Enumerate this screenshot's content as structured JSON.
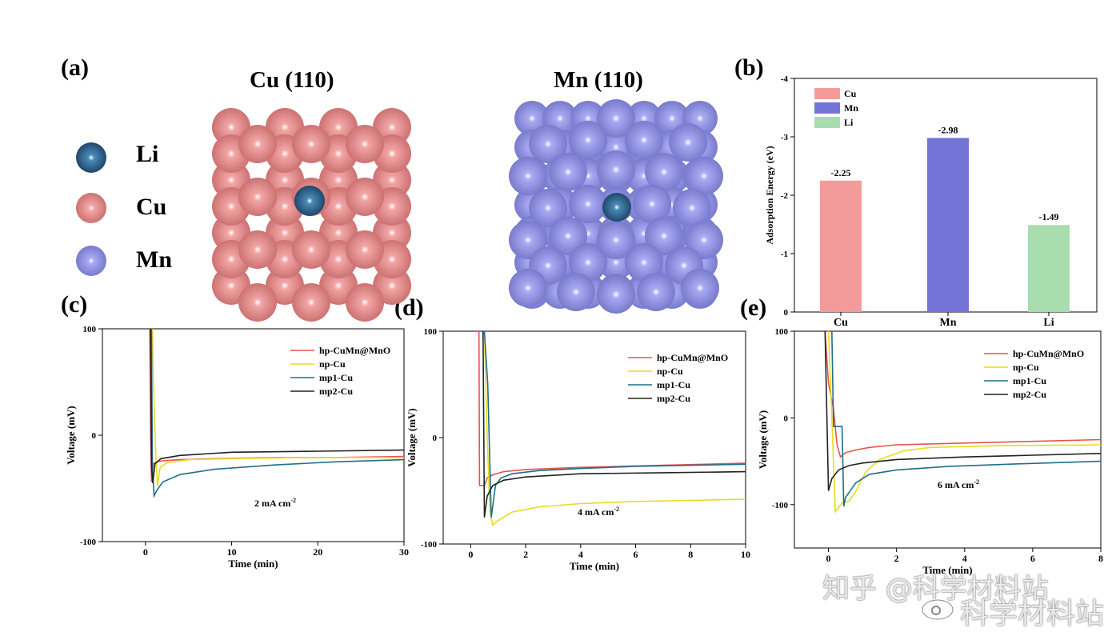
{
  "panel_labels": {
    "a": "(a)",
    "b": "(b)",
    "c": "(c)",
    "d": "(d)",
    "e": "(e)"
  },
  "structures": {
    "cu_title": "Cu (110)",
    "mn_title": "Mn (110)",
    "legend": [
      "Li",
      "Cu",
      "Mn"
    ],
    "colors": {
      "Li": "#1e4d74",
      "Cu": "#e89090",
      "Mn": "#8c8fe6"
    }
  },
  "chart_data": [
    {
      "type": "bar",
      "panel": "(b)",
      "categories": [
        "Cu",
        "Mn",
        "Li"
      ],
      "values": [
        -2.25,
        -2.98,
        -1.49
      ],
      "value_labels": [
        "-2.25",
        "-2.98",
        "-1.49"
      ],
      "colors": [
        "#f39b9b",
        "#7474d8",
        "#a9ddb0"
      ],
      "legend": [
        "Cu",
        "Mn",
        "Li"
      ],
      "ylabel": "Adsorption Energy (eV)",
      "ylim": [
        0,
        -4
      ],
      "yticks": [
        "0",
        "-1",
        "-2",
        "-3",
        "-4"
      ],
      "legend_position": "top-left"
    },
    {
      "type": "line",
      "panel": "(c)",
      "xlabel": "Time (min)",
      "ylabel": "Voltage (mV)",
      "xlim": [
        -5,
        30
      ],
      "ylim": [
        -100,
        100
      ],
      "xticks": [
        "0",
        "10",
        "20",
        "30"
      ],
      "yticks": [
        "-100",
        "0",
        "100"
      ],
      "annotation": {
        "text": "2 mA cm",
        "sup": "-2"
      },
      "legend_position": "top-right",
      "series": [
        {
          "name": "hp-CuMn@MnO",
          "color": "#e8534f",
          "x": [
            0.5,
            0.6,
            0.7,
            0.9,
            1.2,
            2,
            4,
            8,
            15,
            22,
            30
          ],
          "y": [
            100,
            0,
            -44,
            -27,
            -25,
            -24,
            -23,
            -22,
            -21,
            -21,
            -20
          ]
        },
        {
          "name": "np-Cu",
          "color": "#e8dc1e",
          "x": [
            0.8,
            1.0,
            1.2,
            1.4,
            1.7,
            2.5,
            5,
            10,
            18,
            30
          ],
          "y": [
            100,
            30,
            -20,
            -48,
            -30,
            -26,
            -23,
            -22,
            -21,
            -21
          ]
        },
        {
          "name": "mp1-Cu",
          "color": "#1f6e8c",
          "x": [
            0.7,
            0.8,
            1.0,
            1.3,
            2,
            4,
            8,
            15,
            22,
            30
          ],
          "y": [
            100,
            -30,
            -57,
            -52,
            -44,
            -37,
            -32,
            -28,
            -25,
            -23
          ]
        },
        {
          "name": "mp2-Cu",
          "color": "#222222",
          "x": [
            0.6,
            0.7,
            0.85,
            1.1,
            1.8,
            4,
            10,
            20,
            30
          ],
          "y": [
            100,
            -30,
            -45,
            -27,
            -22,
            -19,
            -16,
            -15,
            -14
          ]
        }
      ]
    },
    {
      "type": "line",
      "panel": "(d)",
      "xlabel": "Time (min)",
      "ylabel": "Voltage (mV)",
      "xlim": [
        -1,
        10
      ],
      "ylim": [
        -100,
        100
      ],
      "xticks": [
        "0",
        "2",
        "4",
        "6",
        "8",
        "10"
      ],
      "yticks": [
        "-100",
        "0",
        "100"
      ],
      "annotation": {
        "text": "4 mA cm",
        "sup": "-2"
      },
      "legend_position": "top-right",
      "series": [
        {
          "name": "hp-CuMn@MnO",
          "color": "#e8534f",
          "x": [
            0.3,
            0.32,
            0.5,
            0.6,
            0.8,
            1.2,
            2,
            4,
            7,
            10
          ],
          "y": [
            100,
            -45,
            -45,
            -38,
            -35,
            -32,
            -30,
            -28,
            -26,
            -24
          ]
        },
        {
          "name": "np-Cu",
          "color": "#e8dc1e",
          "x": [
            0.5,
            0.6,
            0.7,
            0.8,
            1.0,
            1.5,
            2.5,
            4,
            6,
            8,
            10
          ],
          "y": [
            100,
            0,
            -70,
            -82,
            -78,
            -70,
            -65,
            -62,
            -60,
            -59,
            -58
          ]
        },
        {
          "name": "mp1-Cu",
          "color": "#1f6e8c",
          "x": [
            0.5,
            0.62,
            0.75,
            0.9,
            1.1,
            1.5,
            2.5,
            4,
            6,
            8,
            10
          ],
          "y": [
            100,
            50,
            -75,
            -45,
            -38,
            -34,
            -31,
            -29,
            -27,
            -26,
            -25
          ]
        },
        {
          "name": "mp2-Cu",
          "color": "#222222",
          "x": [
            0.45,
            0.5,
            0.6,
            0.8,
            1.2,
            2,
            4,
            7,
            10
          ],
          "y": [
            100,
            -75,
            -55,
            -45,
            -40,
            -37,
            -34,
            -33,
            -32
          ]
        }
      ]
    },
    {
      "type": "line",
      "panel": "(e)",
      "xlabel": "Time (min)",
      "ylabel": "Voltage (mV)",
      "xlim": [
        -1,
        8
      ],
      "ylim": [
        -150,
        100
      ],
      "xticks": [
        "0",
        "2",
        "4",
        "6",
        "8"
      ],
      "yticks": [
        "-100",
        "0",
        "100"
      ],
      "annotation": {
        "text": "6 mA cm",
        "sup": "-2"
      },
      "legend_position": "top-right",
      "series": [
        {
          "name": "hp-CuMn@MnO",
          "color": "#e8534f",
          "x": [
            -0.1,
            0.0,
            0.15,
            0.25,
            0.35,
            0.5,
            0.8,
            1.2,
            2,
            4,
            6,
            8
          ],
          "y": [
            100,
            40,
            10,
            -30,
            -45,
            -40,
            -37,
            -34,
            -31,
            -29,
            -27,
            -25
          ]
        },
        {
          "name": "np-Cu",
          "color": "#e8dc1e",
          "x": [
            0.0,
            0.1,
            0.2,
            0.4,
            0.6,
            0.8,
            1.1,
            1.5,
            2.2,
            3,
            5,
            8
          ],
          "y": [
            100,
            0,
            -108,
            -98,
            -96,
            -85,
            -62,
            -48,
            -38,
            -34,
            -32,
            -31
          ]
        },
        {
          "name": "mp1-Cu",
          "color": "#1f6e8c",
          "x": [
            0.1,
            0.15,
            0.2,
            0.4,
            0.45,
            0.5,
            0.8,
            1.2,
            2,
            3.5,
            5.5,
            8
          ],
          "y": [
            100,
            -10,
            -10,
            -10,
            -102,
            -92,
            -75,
            -65,
            -60,
            -56,
            -53,
            -50
          ]
        },
        {
          "name": "mp2-Cu",
          "color": "#222222",
          "x": [
            -0.1,
            0.0,
            0.1,
            0.3,
            0.6,
            1.0,
            2,
            4,
            6,
            8
          ],
          "y": [
            100,
            -84,
            -70,
            -60,
            -55,
            -52,
            -48,
            -45,
            -43,
            -41
          ]
        }
      ]
    }
  ],
  "watermark": {
    "zhihu": "知乎 @科学材料站",
    "weibo": "科学材料站"
  }
}
